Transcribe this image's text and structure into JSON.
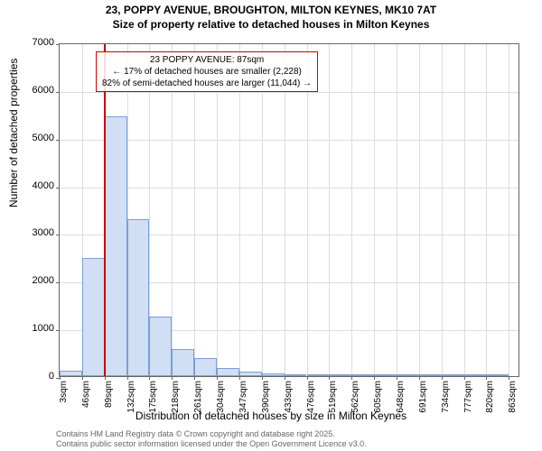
{
  "header": {
    "line1": "23, POPPY AVENUE, BROUGHTON, MILTON KEYNES, MK10 7AT",
    "line2": "Size of property relative to detached houses in Milton Keynes"
  },
  "chart": {
    "type": "histogram",
    "ylabel": "Number of detached properties",
    "xlabel": "Distribution of detached houses by size in Milton Keynes",
    "ylim": [
      0,
      7000
    ],
    "ytick_step": 1000,
    "yticks": [
      0,
      1000,
      2000,
      3000,
      4000,
      5000,
      6000,
      7000
    ],
    "xticks": [
      "3sqm",
      "46sqm",
      "89sqm",
      "132sqm",
      "175sqm",
      "218sqm",
      "261sqm",
      "304sqm",
      "347sqm",
      "390sqm",
      "433sqm",
      "476sqm",
      "519sqm",
      "562sqm",
      "605sqm",
      "648sqm",
      "691sqm",
      "734sqm",
      "777sqm",
      "820sqm",
      "863sqm"
    ],
    "xtick_positions": [
      3,
      46,
      89,
      132,
      175,
      218,
      261,
      304,
      347,
      390,
      433,
      476,
      519,
      562,
      605,
      648,
      691,
      734,
      777,
      820,
      863
    ],
    "x_range": [
      3,
      885
    ],
    "bars": [
      {
        "x": 24.5,
        "w": 43,
        "v": 105
      },
      {
        "x": 67.5,
        "w": 43,
        "v": 2475
      },
      {
        "x": 110.5,
        "w": 43,
        "v": 5445
      },
      {
        "x": 153.5,
        "w": 43,
        "v": 3295
      },
      {
        "x": 196.5,
        "w": 43,
        "v": 1255
      },
      {
        "x": 239.5,
        "w": 43,
        "v": 560
      },
      {
        "x": 282.5,
        "w": 43,
        "v": 375
      },
      {
        "x": 325.5,
        "w": 43,
        "v": 175
      },
      {
        "x": 368.5,
        "w": 43,
        "v": 95
      },
      {
        "x": 411.5,
        "w": 43,
        "v": 60
      },
      {
        "x": 454.5,
        "w": 43,
        "v": 30
      },
      {
        "x": 497.5,
        "w": 43,
        "v": 20
      },
      {
        "x": 540.5,
        "w": 43,
        "v": 15
      },
      {
        "x": 583.5,
        "w": 43,
        "v": 12
      },
      {
        "x": 626.5,
        "w": 43,
        "v": 10
      },
      {
        "x": 669.5,
        "w": 43,
        "v": 8
      },
      {
        "x": 712.5,
        "w": 43,
        "v": 6
      },
      {
        "x": 755.5,
        "w": 43,
        "v": 5
      },
      {
        "x": 798.5,
        "w": 43,
        "v": 4
      },
      {
        "x": 841.5,
        "w": 43,
        "v": 3
      }
    ],
    "bar_fill": "#d0dff3",
    "bar_stroke": "#7a9fd4",
    "grid_color": "#dddddd",
    "background": "#ffffff",
    "marker": {
      "x": 87,
      "color": "#cc0000"
    },
    "annotation": {
      "line1": "23 POPPY AVENUE: 87sqm",
      "line2": "← 17% of detached houses are smaller (2,228)",
      "line3": "82% of semi-detached houses are larger (11,044) →",
      "border_color": "#cc0000"
    }
  },
  "footer": {
    "line1": "Contains HM Land Registry data © Crown copyright and database right 2025.",
    "line2": "Contains public sector information licensed under the Open Government Licence v3.0."
  }
}
